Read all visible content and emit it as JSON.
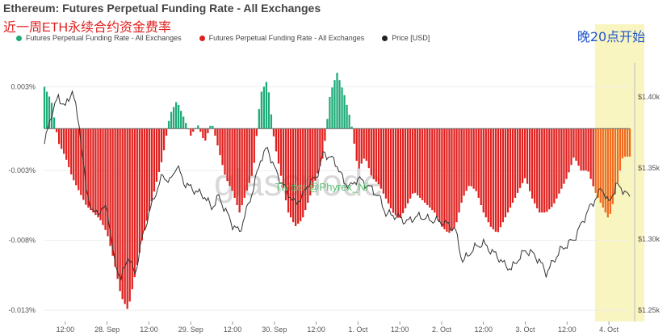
{
  "title": "Ethereum: Futures Perpetual Funding Rate - All Exchanges",
  "subtitle": "近一周ETH永续合约资金费率",
  "annotation": "晚20点开始",
  "watermark": "glassnode",
  "watermark2": "Twitter @Phyrex_Ni",
  "colors": {
    "positive": "#1eab78",
    "negative": "#e0201e",
    "price": "#333333",
    "highlight": "#f9f5c0",
    "highlight_negative": "#f26a1f"
  },
  "chart_data": {
    "type": "bar",
    "legend": [
      {
        "name": "Futures Perpetual Funding Rate - All Exchanges",
        "color": "#1eab78"
      },
      {
        "name": "Futures Perpetual Funding Rate - All Exchanges",
        "color": "#e0201e"
      },
      {
        "name": "Price [USD]",
        "color": "#222222"
      }
    ],
    "y_left": {
      "ticks": [
        "0.003%",
        "-0.003%",
        "-0.008%",
        "-0.013%"
      ],
      "values": [
        0.003,
        -0.003,
        -0.008,
        -0.013
      ],
      "range": [
        -0.0138,
        0.0047
      ]
    },
    "y_right": {
      "ticks": [
        "$1.40k",
        "$1.35k",
        "$1.30k",
        "$1.25k"
      ],
      "values": [
        1400,
        1350,
        1300,
        1250
      ],
      "range": [
        1242,
        1424
      ]
    },
    "x_ticks": [
      "12:00",
      "28. Sep",
      "12:00",
      "29. Sep",
      "12:00",
      "30. Sep",
      "12:00",
      "1. Oct",
      "12:00",
      "2. Oct",
      "12:00",
      "3. Oct",
      "12:00",
      "4. Oct"
    ],
    "x_range_hours": [
      0,
      168
    ],
    "highlight_from_hour": 158,
    "funding_series": {
      "name": "Futures Perpetual Funding Rate - All Exchanges",
      "hours": [
        0,
        2,
        4,
        6,
        8,
        10,
        12,
        14,
        16,
        18,
        20,
        22,
        24,
        26,
        28,
        30,
        32,
        34,
        36,
        38,
        40,
        42,
        44,
        46,
        48,
        50,
        52,
        54,
        56,
        58,
        60,
        62,
        64,
        66,
        68,
        70,
        72,
        74,
        76,
        78,
        80,
        82,
        84,
        86,
        88,
        90,
        92,
        94,
        96,
        98,
        100,
        102,
        104,
        106,
        108,
        110,
        112,
        114,
        116,
        118,
        120,
        122,
        124,
        126,
        128,
        130,
        132,
        134,
        136,
        138,
        140,
        142,
        144,
        146,
        148,
        150,
        152,
        154,
        156,
        158,
        160,
        162,
        164,
        166,
        168
      ],
      "values": [
        0.003,
        0.002,
        -0.001,
        -0.002,
        -0.0035,
        -0.0045,
        -0.0055,
        -0.006,
        -0.0065,
        -0.0075,
        -0.0095,
        -0.012,
        -0.013,
        -0.0105,
        -0.008,
        -0.006,
        -0.004,
        -0.002,
        0.001,
        0.002,
        0.0008,
        -0.0005,
        0.0003,
        -0.001,
        0.0005,
        -0.0015,
        -0.0035,
        -0.0045,
        -0.006,
        -0.0045,
        -0.003,
        0.0025,
        0.0035,
        -0.001,
        -0.0035,
        -0.006,
        -0.007,
        -0.0065,
        -0.005,
        -0.0035,
        -0.002,
        0.0025,
        0.004,
        0.0025,
        0.0005,
        -0.003,
        -0.002,
        -0.0035,
        -0.004,
        -0.005,
        -0.006,
        -0.0065,
        -0.0055,
        -0.0045,
        -0.005,
        -0.0055,
        -0.006,
        -0.007,
        -0.0075,
        -0.007,
        -0.005,
        -0.004,
        -0.0045,
        -0.006,
        -0.007,
        -0.0075,
        -0.0065,
        -0.0055,
        -0.0045,
        -0.0035,
        -0.005,
        -0.006,
        -0.006,
        -0.0055,
        -0.0045,
        -0.0035,
        -0.002,
        -0.003,
        -0.003,
        -0.0045,
        -0.0055,
        -0.0065,
        -0.0045,
        -0.002,
        -0.002
      ]
    },
    "price_series": {
      "name": "Price [USD]",
      "hours": [
        0,
        2,
        4,
        6,
        8,
        10,
        12,
        14,
        16,
        18,
        20,
        22,
        24,
        26,
        28,
        30,
        32,
        34,
        36,
        38,
        40,
        42,
        44,
        46,
        48,
        50,
        52,
        54,
        56,
        58,
        60,
        62,
        64,
        66,
        68,
        70,
        72,
        74,
        76,
        78,
        80,
        82,
        84,
        86,
        88,
        90,
        92,
        94,
        96,
        98,
        100,
        102,
        104,
        106,
        108,
        110,
        112,
        114,
        116,
        118,
        120,
        122,
        124,
        126,
        128,
        130,
        132,
        134,
        136,
        138,
        140,
        142,
        144,
        146,
        148,
        150,
        152,
        154,
        156,
        158,
        160,
        162,
        164,
        166,
        168
      ],
      "values": [
        1367,
        1388,
        1400,
        1393,
        1405,
        1380,
        1335,
        1318,
        1320,
        1322,
        1285,
        1272,
        1288,
        1275,
        1300,
        1318,
        1333,
        1345,
        1340,
        1352,
        1340,
        1336,
        1333,
        1330,
        1322,
        1330,
        1320,
        1310,
        1305,
        1320,
        1336,
        1356,
        1364,
        1350,
        1340,
        1332,
        1325,
        1330,
        1340,
        1343,
        1360,
        1358,
        1352,
        1340,
        1337,
        1343,
        1339,
        1335,
        1330,
        1318,
        1317,
        1315,
        1312,
        1315,
        1316,
        1314,
        1313,
        1312,
        1310,
        1306,
        1284,
        1290,
        1295,
        1297,
        1292,
        1288,
        1282,
        1279,
        1286,
        1292,
        1290,
        1285,
        1276,
        1284,
        1292,
        1296,
        1300,
        1310,
        1320,
        1328,
        1336,
        1325,
        1338,
        1335,
        1329
      ]
    }
  }
}
